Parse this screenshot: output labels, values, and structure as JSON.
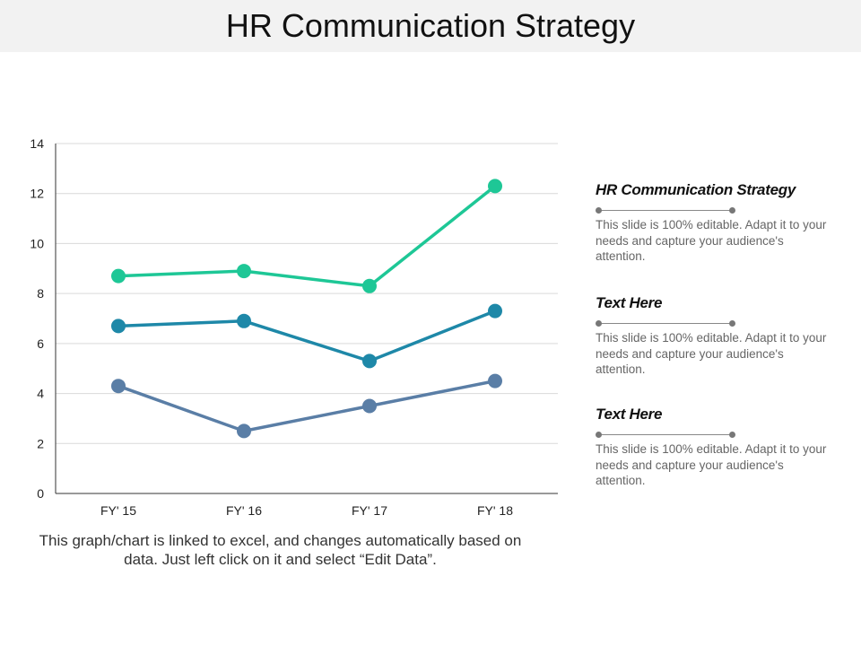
{
  "page": {
    "title": "HR Communication Strategy",
    "caption": "This graph/chart is linked to excel, and changes automatically based on data. Just left click on it and select “Edit Data”."
  },
  "chart_data": {
    "type": "line",
    "categories": [
      "FY' 15",
      "FY' 16",
      "FY' 17",
      "FY' 18"
    ],
    "series": [
      {
        "values": [
          8.7,
          8.9,
          8.3,
          12.3
        ],
        "color": "#1ec796"
      },
      {
        "values": [
          6.7,
          6.9,
          5.3,
          7.3
        ],
        "color": "#1e88a8"
      },
      {
        "values": [
          4.3,
          2.5,
          3.5,
          4.5
        ],
        "color": "#5a7ea6"
      }
    ],
    "ylim": [
      0,
      14
    ],
    "yticks": [
      0,
      2,
      4,
      6,
      8,
      10,
      12,
      14
    ],
    "grid": true,
    "legend": "none",
    "title": "",
    "xlabel": "",
    "ylabel": ""
  },
  "side_blocks": [
    {
      "title": "HR Communication Strategy",
      "text": "This slide is 100% editable. Adapt it to your needs and capture your audience's attention."
    },
    {
      "title": "Text Here",
      "text": "This slide is 100% editable. Adapt it to your needs and capture your audience's attention."
    },
    {
      "title": "Text Here",
      "text": "This slide is 100% editable. Adapt it to your needs and capture your audience's attention."
    }
  ],
  "colors": {
    "gridline": "#d9d9d9",
    "axis": "#333333",
    "title_bar": "#f2f2f2"
  }
}
